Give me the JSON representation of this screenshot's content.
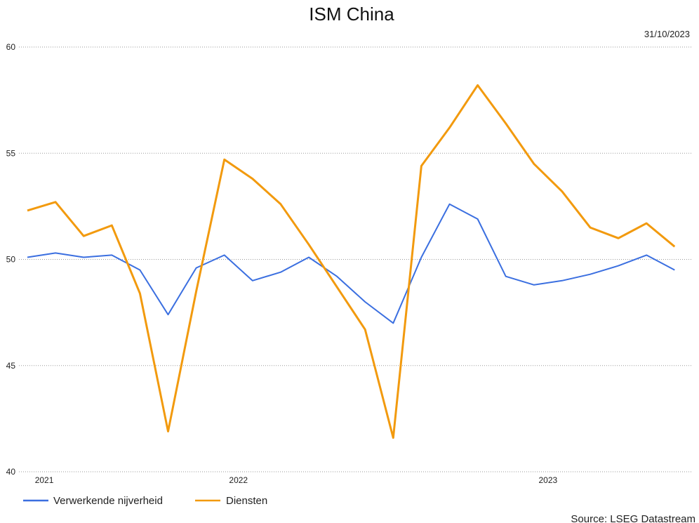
{
  "chart_data": {
    "type": "line",
    "title": "ISM China",
    "date": "31/10/2023",
    "source": "Source: LSEG Datastream",
    "ylim": [
      40,
      60
    ],
    "yticks": [
      "40",
      "45",
      "50",
      "55",
      "60"
    ],
    "xtick_labels": [
      "2021",
      "2022",
      "2023"
    ],
    "grid": "horizontal dotted",
    "legend_position": "bottom-left",
    "x": [
      0,
      1,
      2,
      3,
      4,
      5,
      6,
      7,
      8,
      9,
      10,
      11,
      12,
      13,
      14,
      15,
      16,
      17,
      18,
      19,
      20,
      21,
      22,
      23
    ],
    "xtick_index": [
      0.6,
      7.5,
      18.5
    ],
    "series": [
      {
        "name": "Verwerkende nijverheid",
        "color": "#3B6FE0",
        "values": [
          50.1,
          50.3,
          50.1,
          50.2,
          49.5,
          47.4,
          49.6,
          50.2,
          49.0,
          49.4,
          50.1,
          49.2,
          48.0,
          47.0,
          50.1,
          52.6,
          51.9,
          49.2,
          48.8,
          49.0,
          49.3,
          49.7,
          50.2,
          49.5
        ]
      },
      {
        "name": "Diensten",
        "color": "#F29A0E",
        "values": [
          52.3,
          52.7,
          51.1,
          51.6,
          48.4,
          41.9,
          48.5,
          54.7,
          53.8,
          52.6,
          50.7,
          48.7,
          46.7,
          41.6,
          54.4,
          56.2,
          58.2,
          56.4,
          54.5,
          53.2,
          51.5,
          51.0,
          51.7,
          50.6
        ]
      }
    ]
  }
}
